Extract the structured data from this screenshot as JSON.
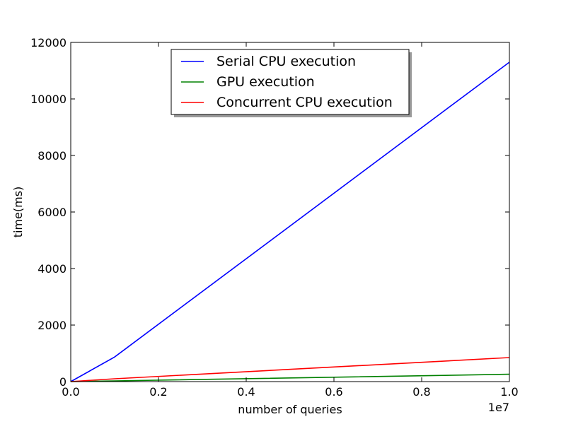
{
  "chart_data": {
    "type": "line",
    "title": "",
    "xlabel": "number of queries",
    "ylabel": "time(ms)",
    "x_offset_label": "1e7",
    "xlim": [
      0,
      10000000
    ],
    "ylim": [
      0,
      12000
    ],
    "x_scale": 10000000,
    "x_ticks": [
      0,
      2000000,
      4000000,
      6000000,
      8000000,
      10000000
    ],
    "x_tick_labels": [
      "0.0",
      "0.2",
      "0.4",
      "0.6",
      "0.8",
      "1.0"
    ],
    "y_ticks": [
      0,
      2000,
      4000,
      6000,
      8000,
      10000,
      12000
    ],
    "y_tick_labels": [
      "0",
      "2000",
      "4000",
      "6000",
      "8000",
      "10000",
      "12000"
    ],
    "grid": false,
    "legend_position": "upper-center",
    "series": [
      {
        "name": "Serial CPU execution",
        "color": "#0000ff",
        "x": [
          0,
          1000000,
          10000000
        ],
        "y": [
          0,
          870,
          11300
        ]
      },
      {
        "name": "GPU execution",
        "color": "#008000",
        "x": [
          0,
          1000000,
          10000000
        ],
        "y": [
          0,
          25,
          260
        ]
      },
      {
        "name": "Concurrent CPU execution",
        "color": "#ff0000",
        "x": [
          0,
          1000000,
          10000000
        ],
        "y": [
          0,
          100,
          850
        ]
      }
    ]
  }
}
